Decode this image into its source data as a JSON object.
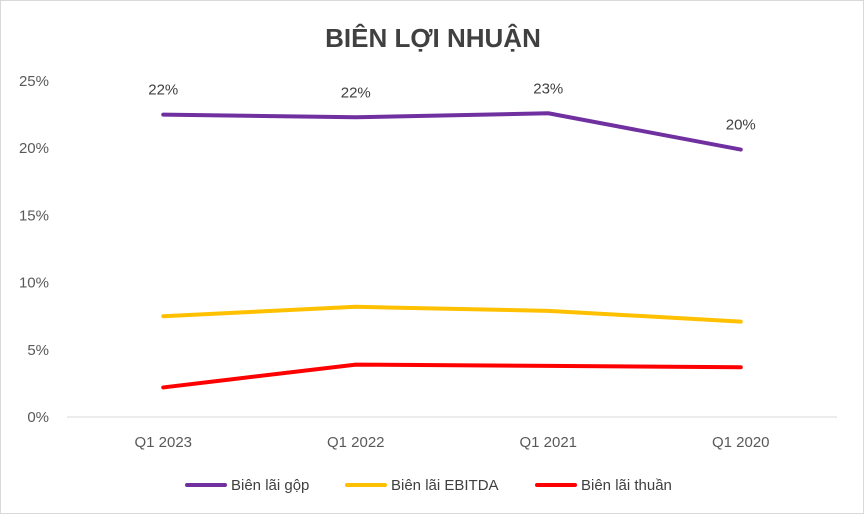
{
  "chart_data": {
    "type": "line",
    "title": "BIÊN LỢI NHUẬN",
    "xlabel": "",
    "ylabel": "",
    "categories": [
      "Q1 2023",
      "Q1 2022",
      "Q1 2021",
      "Q1 2020"
    ],
    "y_ticks": [
      "0%",
      "5%",
      "10%",
      "15%",
      "20%",
      "25%"
    ],
    "ylim": [
      0,
      25
    ],
    "grid": false,
    "legend_position": "bottom",
    "series": [
      {
        "name": "Biên lãi gộp",
        "color": "#7030A0",
        "values": [
          22.5,
          22.3,
          22.6,
          19.9
        ],
        "data_labels": [
          "22%",
          "22%",
          "23%",
          "20%"
        ]
      },
      {
        "name": "Biên lãi EBITDA",
        "color": "#FFC000",
        "values": [
          7.5,
          8.2,
          7.9,
          7.1
        ],
        "data_labels": []
      },
      {
        "name": "Biên lãi thuần",
        "color": "#FF0000",
        "values": [
          2.2,
          3.9,
          3.8,
          3.7
        ],
        "data_labels": []
      }
    ]
  }
}
